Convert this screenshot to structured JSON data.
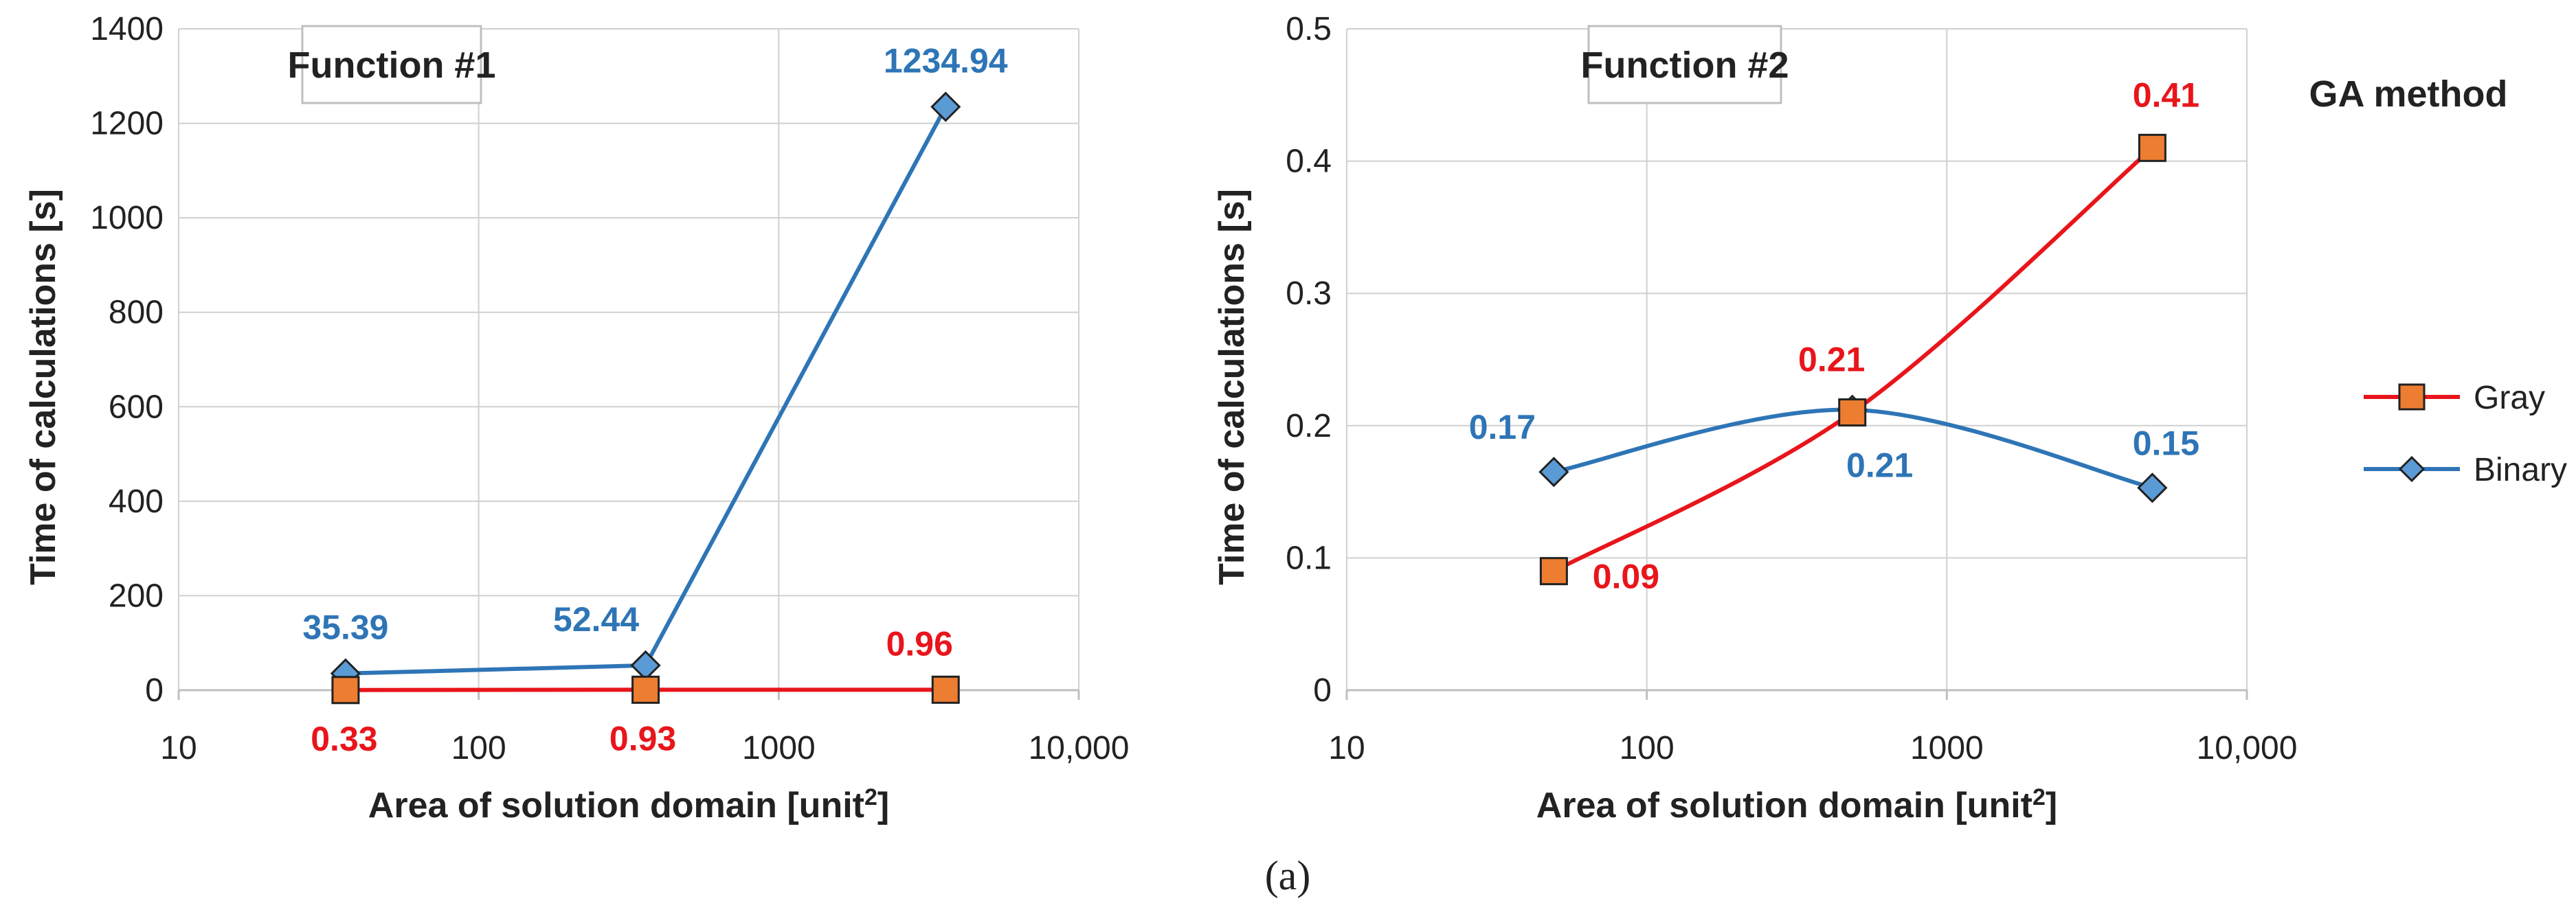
{
  "colors": {
    "gray": "#e8151b",
    "gray_marker": "#ed7d31",
    "binary": "#2e75b6",
    "binary_marker": "#5b9bd5",
    "grid": "#d0d0d0"
  },
  "legend": {
    "title": "GA method",
    "entries": [
      {
        "name": "Gray",
        "marker": "square"
      },
      {
        "name": "Binary",
        "marker": "diamond"
      }
    ]
  },
  "caption": "(a)",
  "chart_data": [
    {
      "type": "line",
      "title": "Function #1",
      "xlabel": "Area of solution domain [unit",
      "xlabel_sup": "2",
      "xlabel_end": "]",
      "ylabel": "Time of calculations [s]",
      "xscale": "log",
      "xlim": [
        10,
        10000
      ],
      "ylim": [
        0,
        1400
      ],
      "xticks": [
        10,
        100,
        1000,
        10000
      ],
      "xtick_labels": [
        "10",
        "100",
        "1000",
        "10,000"
      ],
      "yticks": [
        0,
        200,
        400,
        600,
        800,
        1000,
        1200,
        1400
      ],
      "ytick_labels": [
        "0",
        "200",
        "400",
        "600",
        "800",
        "1000",
        "1200",
        "1400"
      ],
      "series": [
        {
          "name": "Gray",
          "x": [
            36,
            360,
            3600
          ],
          "values": [
            0.33,
            0.93,
            0.96
          ],
          "labels": [
            "0.33",
            "0.93",
            "0.96"
          ],
          "smooth": false
        },
        {
          "name": "Binary",
          "x": [
            36,
            360,
            3600
          ],
          "values": [
            35.39,
            52.44,
            1234.94
          ],
          "labels": [
            "35.39",
            "52.44",
            "1234.94"
          ],
          "smooth": false
        }
      ]
    },
    {
      "type": "line",
      "title": "Function #2",
      "xlabel": "Area of solution domain [unit",
      "xlabel_sup": "2",
      "xlabel_end": "]",
      "ylabel": "Time of calculations [s]",
      "xscale": "log",
      "xlim": [
        10,
        10000
      ],
      "ylim": [
        0,
        0.5
      ],
      "xticks": [
        10,
        100,
        1000,
        10000
      ],
      "xtick_labels": [
        "10",
        "100",
        "1000",
        "10,000"
      ],
      "yticks": [
        0,
        0.1,
        0.2,
        0.3,
        0.4,
        0.5
      ],
      "ytick_labels": [
        "0",
        "0.1",
        "0.2",
        "0.3",
        "0.4",
        "0.5"
      ],
      "series": [
        {
          "name": "Gray",
          "x": [
            49,
            484,
            4840
          ],
          "values": [
            0.09,
            0.21,
            0.41
          ],
          "labels": [
            "0.09",
            "0.21",
            "0.41"
          ],
          "smooth": true
        },
        {
          "name": "Binary",
          "x": [
            49,
            484,
            4840
          ],
          "values": [
            0.165,
            0.212,
            0.153
          ],
          "labels": [
            "0.17",
            "0.21",
            "0.15"
          ],
          "smooth": true
        }
      ]
    }
  ]
}
